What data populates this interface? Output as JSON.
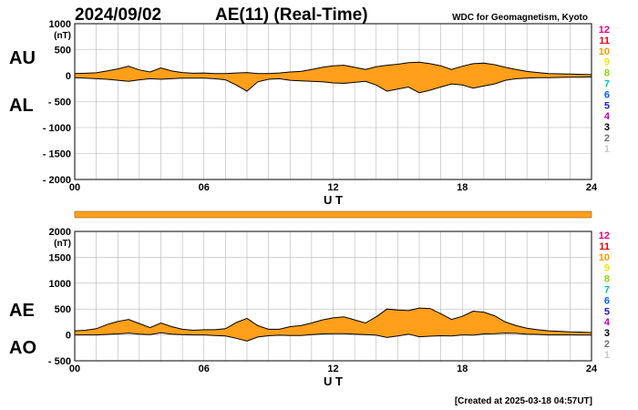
{
  "header": {
    "date": "2024/09/02",
    "title": "AE(11) (Real-Time)",
    "source": "WDC for Geomagnetism, Kyoto"
  },
  "footer": {
    "created": "[Created at 2025-03-18 04:57UT]"
  },
  "colors": {
    "fill": "#ff9f1a",
    "line": "#000000",
    "grid": "#b4b4b4",
    "bar": "#ff9f1a"
  },
  "chart_data": [
    {
      "type": "area",
      "panel": "AU/AL",
      "upper_label": "AU",
      "lower_label": "AL",
      "xlabel": "U T",
      "x_ticks": [
        "00",
        "06",
        "12",
        "18",
        "24"
      ],
      "xlim": [
        0,
        24
      ],
      "ylim": [
        -2000,
        1000
      ],
      "y_ticks": [
        1000,
        500,
        0,
        -500,
        -1000,
        -1500,
        -2000
      ],
      "y_tick_labels": [
        "1000",
        "500",
        "0",
        "- 500",
        "- 1000",
        "- 1500",
        "- 2000"
      ],
      "y_unit": "(nT)",
      "grid": true,
      "station_count_labels": [
        "12",
        "11",
        "10",
        "9",
        "8",
        "7",
        "6",
        "5",
        "4",
        "3",
        "2",
        "1"
      ],
      "station_count_colors": [
        "#e6007e",
        "#e60012",
        "#ff9900",
        "#f2e600",
        "#8fd400",
        "#00c8b4",
        "#0060ff",
        "#2020c0",
        "#c000c0",
        "#000000",
        "#707070",
        "#c8c8c8"
      ],
      "series": [
        {
          "name": "AU",
          "x": [
            0,
            0.5,
            1,
            1.5,
            2,
            2.5,
            3,
            3.5,
            4,
            4.5,
            5,
            5.5,
            6,
            6.5,
            7,
            7.5,
            8,
            8.5,
            9,
            9.5,
            10,
            10.5,
            11,
            11.5,
            12,
            12.5,
            13,
            13.5,
            14,
            14.5,
            15,
            15.5,
            16,
            16.5,
            17,
            17.5,
            18,
            18.5,
            19,
            19.5,
            20,
            20.5,
            21,
            21.5,
            22,
            22.5,
            23,
            23.5,
            24
          ],
          "values": [
            40,
            45,
            55,
            90,
            130,
            180,
            110,
            70,
            150,
            90,
            60,
            45,
            50,
            40,
            40,
            50,
            60,
            40,
            40,
            50,
            70,
            80,
            120,
            160,
            190,
            200,
            160,
            120,
            170,
            200,
            220,
            250,
            260,
            230,
            190,
            120,
            180,
            230,
            240,
            210,
            160,
            120,
            80,
            60,
            40,
            35,
            30,
            25,
            20
          ]
        },
        {
          "name": "AL",
          "x": [
            0,
            0.5,
            1,
            1.5,
            2,
            2.5,
            3,
            3.5,
            4,
            4.5,
            5,
            5.5,
            6,
            6.5,
            7,
            7.5,
            8,
            8.5,
            9,
            9.5,
            10,
            10.5,
            11,
            11.5,
            12,
            12.5,
            13,
            13.5,
            14,
            14.5,
            15,
            15.5,
            16,
            16.5,
            17,
            17.5,
            18,
            18.5,
            19,
            19.5,
            20,
            20.5,
            21,
            21.5,
            22,
            22.5,
            23,
            23.5,
            24
          ],
          "values": [
            -40,
            -50,
            -60,
            -70,
            -90,
            -110,
            -80,
            -60,
            -70,
            -60,
            -50,
            -50,
            -50,
            -60,
            -80,
            -180,
            -300,
            -120,
            -70,
            -60,
            -90,
            -100,
            -110,
            -120,
            -140,
            -150,
            -130,
            -110,
            -180,
            -300,
            -260,
            -220,
            -330,
            -280,
            -220,
            -160,
            -180,
            -240,
            -200,
            -160,
            -90,
            -60,
            -50,
            -40,
            -40,
            -35,
            -30,
            -30,
            -25
          ]
        }
      ]
    },
    {
      "type": "area",
      "panel": "AE/AO",
      "upper_label": "AE",
      "lower_label": "AO",
      "xlabel": "U T",
      "x_ticks": [
        "00",
        "06",
        "12",
        "18",
        "24"
      ],
      "xlim": [
        0,
        24
      ],
      "ylim": [
        -500,
        2000
      ],
      "y_ticks": [
        2000,
        1500,
        1000,
        500,
        0,
        -500
      ],
      "y_tick_labels": [
        "2000",
        "1500",
        "1000",
        "500",
        "0",
        "- 500"
      ],
      "y_unit": "(nT)",
      "grid": true,
      "station_count_labels": [
        "12",
        "11",
        "10",
        "9",
        "8",
        "7",
        "6",
        "5",
        "4",
        "3",
        "2",
        "1"
      ],
      "station_count_colors": [
        "#e6007e",
        "#e60012",
        "#ff9900",
        "#f2e600",
        "#8fd400",
        "#00c8b4",
        "#0060ff",
        "#2020c0",
        "#c000c0",
        "#000000",
        "#707070",
        "#c8c8c8"
      ],
      "series": [
        {
          "name": "AE",
          "x": [
            0,
            0.5,
            1,
            1.5,
            2,
            2.5,
            3,
            3.5,
            4,
            4.5,
            5,
            5.5,
            6,
            6.5,
            7,
            7.5,
            8,
            8.5,
            9,
            9.5,
            10,
            10.5,
            11,
            11.5,
            12,
            12.5,
            13,
            13.5,
            14,
            14.5,
            15,
            15.5,
            16,
            16.5,
            17,
            17.5,
            18,
            18.5,
            19,
            19.5,
            20,
            20.5,
            21,
            21.5,
            22,
            22.5,
            23,
            23.5,
            24
          ],
          "values": [
            80,
            90,
            120,
            200,
            260,
            300,
            220,
            140,
            230,
            160,
            110,
            90,
            100,
            100,
            120,
            240,
            320,
            180,
            110,
            110,
            160,
            180,
            230,
            290,
            330,
            350,
            290,
            230,
            350,
            500,
            480,
            470,
            520,
            510,
            410,
            300,
            360,
            460,
            440,
            370,
            250,
            180,
            130,
            100,
            80,
            70,
            60,
            55,
            45
          ]
        },
        {
          "name": "AO",
          "x": [
            0,
            0.5,
            1,
            1.5,
            2,
            2.5,
            3,
            3.5,
            4,
            4.5,
            5,
            5.5,
            6,
            6.5,
            7,
            7.5,
            8,
            8.5,
            9,
            9.5,
            10,
            10.5,
            11,
            11.5,
            12,
            12.5,
            13,
            13.5,
            14,
            14.5,
            15,
            15.5,
            16,
            16.5,
            17,
            17.5,
            18,
            18.5,
            19,
            19.5,
            20,
            20.5,
            21,
            21.5,
            22,
            22.5,
            23,
            23.5,
            24
          ],
          "values": [
            0,
            0,
            0,
            10,
            20,
            35,
            15,
            5,
            40,
            15,
            5,
            0,
            0,
            -10,
            -20,
            -65,
            -120,
            -40,
            -15,
            -5,
            -10,
            -10,
            5,
            20,
            25,
            25,
            15,
            5,
            -5,
            -50,
            -20,
            15,
            -35,
            -25,
            -15,
            -20,
            0,
            -5,
            20,
            25,
            35,
            30,
            15,
            10,
            0,
            0,
            0,
            -3,
            -3
          ]
        }
      ]
    }
  ]
}
